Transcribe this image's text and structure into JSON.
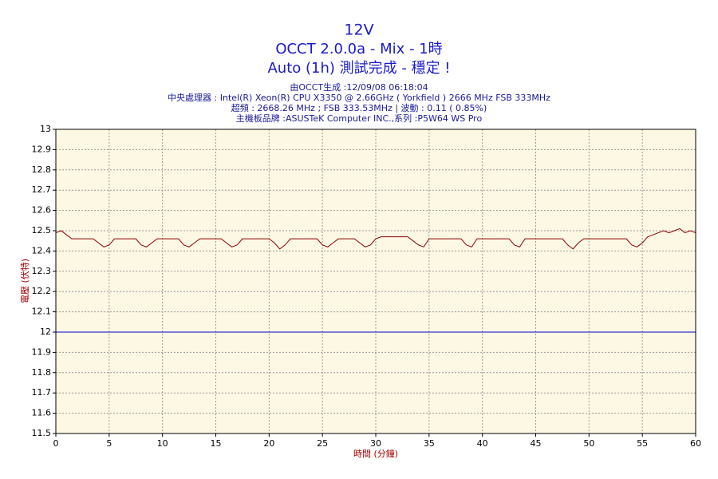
{
  "chart_data": {
    "type": "line",
    "title": "12V",
    "title_lines": [
      "OCCT 2.0.0a - Mix - 1時",
      "Auto (1h) 測試完成 - 穩定 !"
    ],
    "subtitle_lines": [
      "由OCCT生成 :12/09/08 06:18:04",
      "中央處理器 : Intel(R) Xeon(R) CPU X3350 @ 2.66GHz ( Yorkfield ) 2666 MHz FSB 333MHz",
      "超頻 : 2668.26 MHz ; FSB 333.53MHz | 波動 : 0.11 ( 0.85%)",
      "主機板品牌 :ASUSTeK Computer INC.,系列 :P5W64 WS Pro"
    ],
    "x_label": "時間 (分鐘)",
    "y_label": "電壓 (伏特)",
    "xlim": [
      0,
      60
    ],
    "ylim": [
      11.5,
      13
    ],
    "xticks": [
      0,
      5,
      10,
      15,
      20,
      25,
      30,
      35,
      40,
      45,
      50,
      55,
      60
    ],
    "yticks": [
      11.5,
      11.6,
      11.7,
      11.8,
      11.9,
      12,
      12.1,
      12.2,
      12.3,
      12.4,
      12.5,
      12.6,
      12.7,
      12.8,
      12.9,
      13
    ],
    "grid": true,
    "series": [
      {
        "color": "#8b0000",
        "x": [
          0,
          0.5,
          1,
          1.5,
          2,
          2.5,
          3,
          3.5,
          4,
          4.5,
          5,
          5.5,
          6,
          6.5,
          7,
          7.5,
          8,
          8.5,
          9,
          9.5,
          10,
          10.5,
          11,
          11.5,
          12,
          12.5,
          13,
          13.5,
          14,
          14.5,
          15,
          15.5,
          16,
          16.5,
          17,
          17.5,
          18,
          18.5,
          19,
          19.5,
          20,
          20.5,
          21,
          21.5,
          22,
          22.5,
          23,
          23.5,
          24,
          24.5,
          25,
          25.5,
          26,
          26.5,
          27,
          27.5,
          28,
          28.5,
          29,
          29.5,
          30,
          30.5,
          31,
          31.5,
          32,
          32.5,
          33,
          33.5,
          34,
          34.5,
          35,
          35.5,
          36,
          36.5,
          37,
          37.5,
          38,
          38.5,
          39,
          39.5,
          40,
          40.5,
          41,
          41.5,
          42,
          42.5,
          43,
          43.5,
          44,
          44.5,
          45,
          45.5,
          46,
          46.5,
          47,
          47.5,
          48,
          48.5,
          49,
          49.5,
          50,
          50.5,
          51,
          51.5,
          52,
          52.5,
          53,
          53.5,
          54,
          54.5,
          55,
          55.5,
          56,
          56.5,
          57,
          57.5,
          58,
          58.5,
          59,
          59.5,
          60
        ],
        "values": [
          12.49,
          12.5,
          12.48,
          12.46,
          12.46,
          12.46,
          12.46,
          12.46,
          12.44,
          12.42,
          12.43,
          12.46,
          12.46,
          12.46,
          12.46,
          12.46,
          12.43,
          12.42,
          12.44,
          12.46,
          12.46,
          12.46,
          12.46,
          12.46,
          12.43,
          12.42,
          12.44,
          12.46,
          12.46,
          12.46,
          12.46,
          12.46,
          12.44,
          12.42,
          12.43,
          12.46,
          12.46,
          12.46,
          12.46,
          12.46,
          12.46,
          12.44,
          12.41,
          12.43,
          12.46,
          12.46,
          12.46,
          12.46,
          12.46,
          12.46,
          12.43,
          12.42,
          12.44,
          12.46,
          12.46,
          12.46,
          12.46,
          12.44,
          12.42,
          12.43,
          12.46,
          12.47,
          12.47,
          12.47,
          12.47,
          12.47,
          12.47,
          12.45,
          12.43,
          12.42,
          12.46,
          12.46,
          12.46,
          12.46,
          12.46,
          12.46,
          12.46,
          12.43,
          12.42,
          12.46,
          12.46,
          12.46,
          12.46,
          12.46,
          12.46,
          12.46,
          12.43,
          12.42,
          12.46,
          12.46,
          12.46,
          12.46,
          12.46,
          12.46,
          12.46,
          12.46,
          12.43,
          12.41,
          12.44,
          12.46,
          12.46,
          12.46,
          12.46,
          12.46,
          12.46,
          12.46,
          12.46,
          12.46,
          12.43,
          12.42,
          12.44,
          12.47,
          12.48,
          12.49,
          12.5,
          12.49,
          12.5,
          12.51,
          12.49,
          12.5,
          12.49
        ]
      }
    ],
    "hline": {
      "value": 12,
      "color": "#0000cc"
    }
  }
}
